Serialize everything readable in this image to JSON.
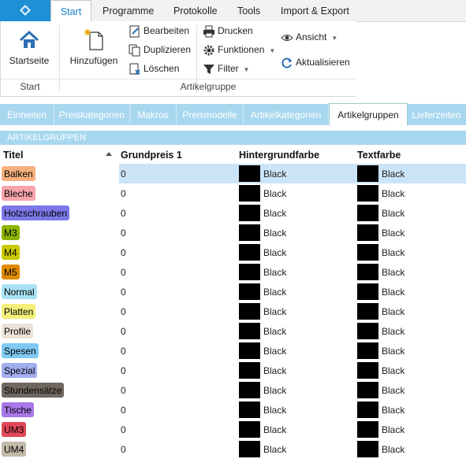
{
  "menu": {
    "tabs": [
      {
        "label": "Start",
        "active": true
      },
      {
        "label": "Programme"
      },
      {
        "label": "Protokolle"
      },
      {
        "label": "Tools"
      },
      {
        "label": "Import & Export"
      }
    ]
  },
  "ribbon": {
    "startseite": "Startseite",
    "hinzufuegen": "Hinzufügen",
    "bearbeiten": "Bearbeiten",
    "duplizieren": "Duplizieren",
    "loeschen": "Löschen",
    "drucken": "Drucken",
    "funktionen": "Funktionen",
    "filter": "Filter",
    "ansicht": "Ansicht",
    "aktualisieren": "Aktualisieren",
    "group_start": "Start",
    "group_artikelgruppe": "Artikelgruppe"
  },
  "subtabs": [
    {
      "label": "Einheiten"
    },
    {
      "label": "Preiskategorien"
    },
    {
      "label": "Makros"
    },
    {
      "label": "Preismodelle"
    },
    {
      "label": "Artikelkategorien"
    },
    {
      "label": "Artikelgruppen",
      "active": true
    },
    {
      "label": "Lieferzeiten"
    }
  ],
  "section_title": "ARTIKELGRUPPEN",
  "table": {
    "headers": {
      "title": "Titel",
      "price": "Grundpreis 1",
      "bg": "Hintergrundfarbe",
      "fg": "Textfarbe"
    },
    "rows": [
      {
        "title": "Balken",
        "price": "0",
        "bg": "Black",
        "fg": "Black",
        "color": "#f7b07e",
        "selected": true
      },
      {
        "title": "Bleche",
        "price": "0",
        "bg": "Black",
        "fg": "Black",
        "color": "#f7a4ad"
      },
      {
        "title": "Holzschrauben",
        "price": "0",
        "bg": "Black",
        "fg": "Black",
        "color": "#7b79e8"
      },
      {
        "title": "M3",
        "price": "0",
        "bg": "Black",
        "fg": "Black",
        "color": "#8cb400"
      },
      {
        "title": "M4",
        "price": "0",
        "bg": "Black",
        "fg": "Black",
        "color": "#c9c900"
      },
      {
        "title": "M5",
        "price": "0",
        "bg": "Black",
        "fg": "Black",
        "color": "#e08a00"
      },
      {
        "title": "Normal",
        "price": "0",
        "bg": "Black",
        "fg": "Black",
        "color": "#a9e2f5"
      },
      {
        "title": "Platten",
        "price": "0",
        "bg": "Black",
        "fg": "Black",
        "color": "#f3f07a"
      },
      {
        "title": "Profile",
        "price": "0",
        "bg": "Black",
        "fg": "Black",
        "color": "#ece2d7"
      },
      {
        "title": "Spesen",
        "price": "0",
        "bg": "Black",
        "fg": "Black",
        "color": "#7fc9f2"
      },
      {
        "title": "Spezial",
        "price": "0",
        "bg": "Black",
        "fg": "Black",
        "color": "#a3aef0"
      },
      {
        "title": "Stundensätze",
        "price": "0",
        "bg": "Black",
        "fg": "Black",
        "color": "#6f6760"
      },
      {
        "title": "Tische",
        "price": "0",
        "bg": "Black",
        "fg": "Black",
        "color": "#a877e8"
      },
      {
        "title": "UM3",
        "price": "0",
        "bg": "Black",
        "fg": "Black",
        "color": "#e0475a"
      },
      {
        "title": "UM4",
        "price": "0",
        "bg": "Black",
        "fg": "Black",
        "color": "#c2b9aa"
      }
    ]
  }
}
